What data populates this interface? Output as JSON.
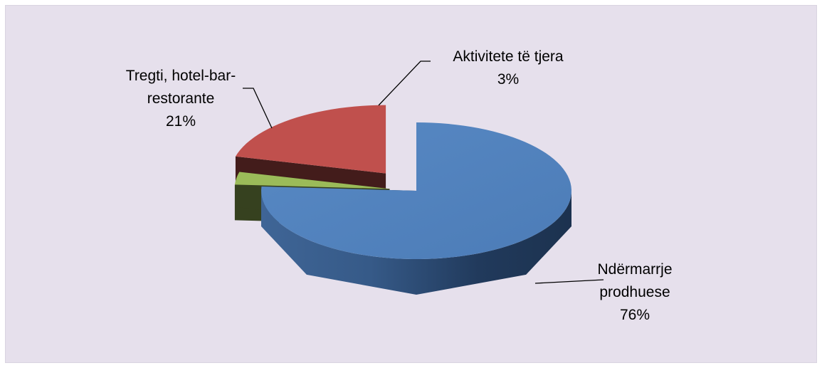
{
  "chart_data": {
    "type": "pie",
    "title": "",
    "style": "3d-exploded",
    "slices": [
      {
        "label_lines": [
          "Ndërmarrje",
          "prodhuese"
        ],
        "percent_label": "76%",
        "value": 76,
        "color": "#4f81bd"
      },
      {
        "label_lines": [
          "Aktivitete të tjera"
        ],
        "percent_label": "3%",
        "value": 3,
        "color": "#9bbb59"
      },
      {
        "label_lines": [
          "Tregti, hotel-bar-",
          "restorante"
        ],
        "percent_label": "21%",
        "value": 21,
        "color": "#c0504d"
      }
    ],
    "background": "#e6e0ec"
  }
}
